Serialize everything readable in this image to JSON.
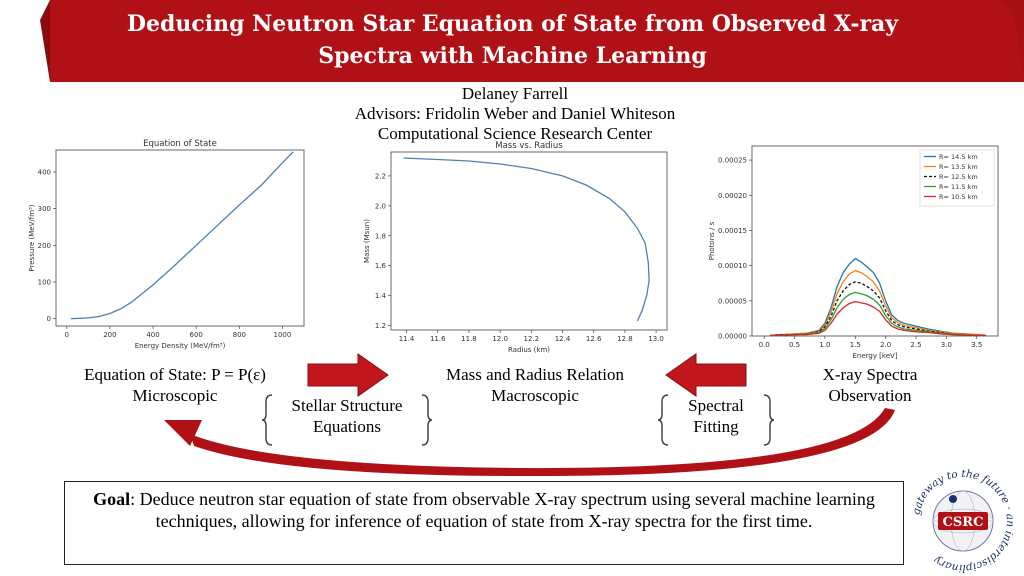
{
  "header": {
    "title_line1": "Deducing Neutron Star Equation of State from Observed X-ray",
    "title_line2": "Spectra with Machine Learning",
    "color": "#b01116"
  },
  "authors": {
    "name": "Delaney Farrell",
    "advisors": "Advisors: Fridolin Weber and Daniel Whiteson",
    "center": "Computational Science Research Center"
  },
  "flow": {
    "left_label_line1": "Equation of State: P = P(ε)",
    "left_label_line2": "Microscopic",
    "mid_label_line1": "Mass and Radius Relation",
    "mid_label_line2": "Macroscopic",
    "right_label_line1": "X-ray Spectra",
    "right_label_line2": "Observation",
    "brace1_line1": "Stellar Structure",
    "brace1_line2": "Equations",
    "brace2_line1": "Spectral",
    "brace2_line2": "Fitting",
    "arrow_color": "#c0161c"
  },
  "goal": {
    "label": "Goal",
    "text": ": Deduce neutron star equation of state from observable X-ray spectrum using several machine learning techniques, allowing for inference of equation of state from X-ray spectra for the first time."
  },
  "logo": {
    "text": "CSRC",
    "ring_text": "gateway to the future · an interdisciplinary"
  },
  "chart_data": [
    {
      "type": "line",
      "title": "Equation of State",
      "xlabel": "Energy Density (MeV/fm³)",
      "ylabel": "Pressure (MeV/fm³)",
      "xlim": [
        -50,
        1100
      ],
      "ylim": [
        -20,
        460
      ],
      "xticks": [
        0,
        200,
        400,
        600,
        800,
        1000
      ],
      "yticks": [
        0,
        100,
        200,
        300,
        400
      ],
      "series": [
        {
          "x": [
            20,
            100,
            150,
            200,
            250,
            300,
            400,
            500,
            600,
            700,
            800,
            900,
            1000,
            1050
          ],
          "y": [
            0,
            2,
            6,
            14,
            27,
            45,
            92,
            145,
            200,
            255,
            310,
            363,
            425,
            455
          ]
        }
      ],
      "color": "#4f7fb5"
    },
    {
      "type": "line",
      "title": "Mass vs. Radius",
      "xlabel": "Radius (km)",
      "ylabel": "Mass (Msun)",
      "xlim": [
        11.3,
        13.07
      ],
      "ylim": [
        1.17,
        2.36
      ],
      "xticks": [
        11.4,
        11.6,
        11.8,
        12.0,
        12.2,
        12.4,
        12.6,
        12.8,
        13.0
      ],
      "yticks": [
        1.2,
        1.4,
        1.6,
        1.8,
        2.0,
        2.2
      ],
      "series": [
        {
          "x": [
            11.38,
            11.6,
            11.8,
            12.0,
            12.2,
            12.4,
            12.55,
            12.7,
            12.8,
            12.88,
            12.93,
            12.95,
            12.955,
            12.94,
            12.91,
            12.88
          ],
          "y": [
            2.32,
            2.31,
            2.3,
            2.28,
            2.25,
            2.2,
            2.14,
            2.05,
            1.96,
            1.85,
            1.75,
            1.62,
            1.5,
            1.4,
            1.3,
            1.23
          ]
        }
      ],
      "color": "#4f7fb5"
    },
    {
      "type": "line",
      "title": "",
      "xlabel": "Energy [keV]",
      "ylabel": "Photons / s",
      "xlim": [
        -0.2,
        3.85
      ],
      "ylim": [
        0,
        0.00027
      ],
      "xticks": [
        0.0,
        0.5,
        1.0,
        1.5,
        2.0,
        2.5,
        3.0,
        3.5
      ],
      "yticks": [
        0.0,
        5e-05,
        0.0001,
        0.00015,
        0.0002,
        0.00025
      ],
      "ytick_labels": [
        "0.00000",
        "0.00005",
        "0.00010",
        "0.00015",
        "0.00020",
        "0.00025"
      ],
      "legend": "top-right",
      "x": [
        0.1,
        0.3,
        0.5,
        0.7,
        0.9,
        1.0,
        1.1,
        1.2,
        1.3,
        1.4,
        1.5,
        1.6,
        1.7,
        1.8,
        1.9,
        2.0,
        2.1,
        2.2,
        2.3,
        2.5,
        2.7,
        2.9,
        3.1,
        3.3,
        3.5,
        3.65
      ],
      "series": [
        {
          "name": "R= 14.5 km",
          "color": "#1f77b4",
          "dash": false,
          "values": [
            1e-06,
            2e-06,
            3e-06,
            4e-06,
            8e-06,
            1.8e-05,
            4e-05,
            7e-05,
            9e-05,
            0.000102,
            0.00011,
            0.000105,
            9.8e-05,
            9e-05,
            7.5e-05,
            5e-05,
            3e-05,
            2.2e-05,
            1.8e-05,
            1.4e-05,
            1e-05,
            7e-06,
            4e-06,
            3e-06,
            2e-06,
            1e-06
          ]
        },
        {
          "name": "R= 13.5 km",
          "color": "#ff7f0e",
          "dash": false,
          "values": [
            1e-06,
            2e-06,
            3e-06,
            4e-06,
            7e-06,
            1.5e-05,
            3.4e-05,
            6e-05,
            7.7e-05,
            8.8e-05,
            9.3e-05,
            9e-05,
            8.4e-05,
            7.7e-05,
            6.4e-05,
            4.3e-05,
            2.6e-05,
            1.9e-05,
            1.5e-05,
            1.2e-05,
            8e-06,
            6e-06,
            4e-06,
            3e-06,
            2e-06,
            1e-06
          ]
        },
        {
          "name": "R= 12.5 km",
          "color": "#111111",
          "dash": true,
          "values": [
            1e-06,
            2e-06,
            2e-06,
            3e-06,
            6e-06,
            1.3e-05,
            2.8e-05,
            5e-05,
            6.4e-05,
            7.3e-05,
            7.7e-05,
            7.5e-05,
            7e-05,
            6.4e-05,
            5.4e-05,
            3.6e-05,
            2.2e-05,
            1.6e-05,
            1.3e-05,
            1e-05,
            7e-06,
            5e-06,
            3e-06,
            2e-06,
            1e-06,
            1e-06
          ]
        },
        {
          "name": "R= 11.5 km",
          "color": "#2ca02c",
          "dash": false,
          "values": [
            1e-06,
            1e-06,
            2e-06,
            3e-06,
            5e-06,
            1.1e-05,
            2.3e-05,
            4e-05,
            5.2e-05,
            5.9e-05,
            6.2e-05,
            6e-05,
            5.7e-05,
            5.2e-05,
            4.4e-05,
            2.9e-05,
            1.8e-05,
            1.3e-05,
            1e-05,
            8e-06,
            6e-06,
            4e-06,
            3e-06,
            2e-06,
            1e-06,
            1e-06
          ]
        },
        {
          "name": "R= 10.5 km",
          "color": "#d62728",
          "dash": false,
          "values": [
            1e-06,
            1e-06,
            2e-06,
            2e-06,
            4e-06,
            8e-06,
            1.8e-05,
            3.1e-05,
            4e-05,
            4.6e-05,
            4.9e-05,
            4.7e-05,
            4.5e-05,
            4.1e-05,
            3.5e-05,
            2.3e-05,
            1.4e-05,
            1e-05,
            8e-06,
            6e-06,
            5e-06,
            3e-06,
            2e-06,
            1e-06,
            1e-06,
            1e-06
          ]
        }
      ]
    }
  ]
}
